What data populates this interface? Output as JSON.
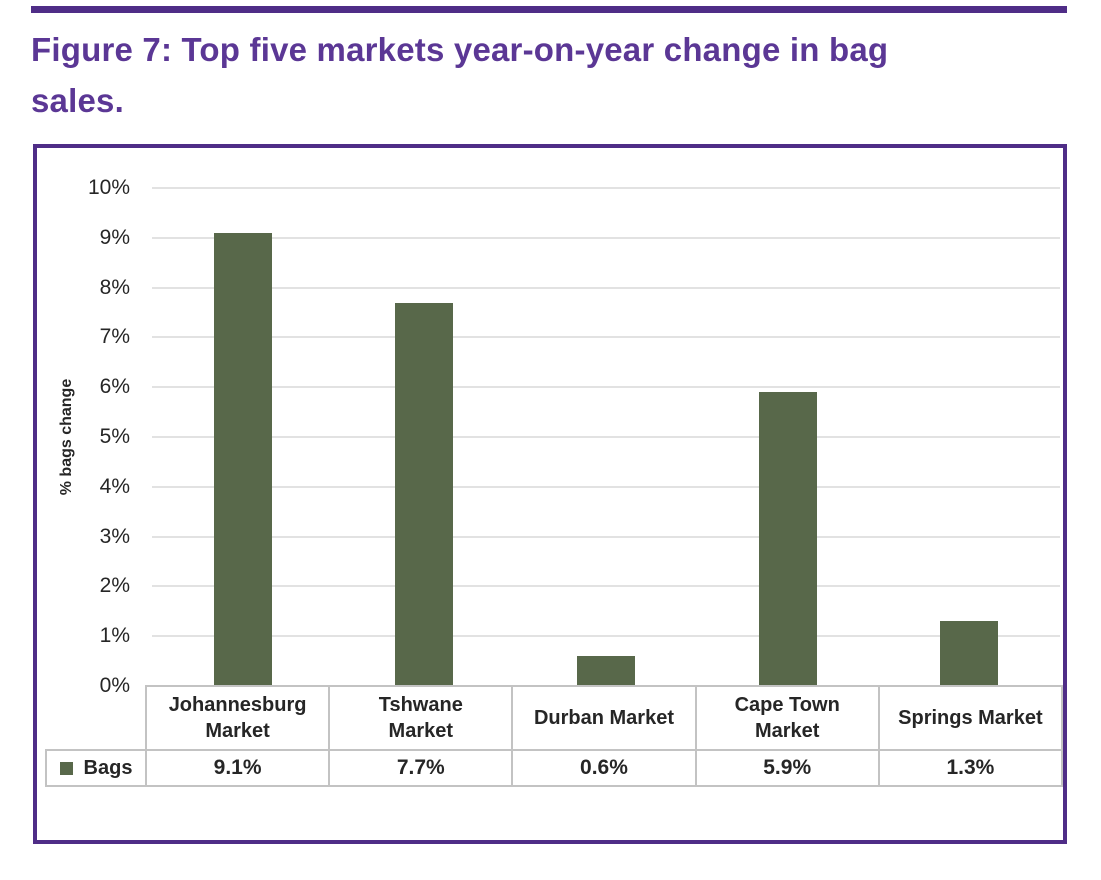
{
  "figure": {
    "title_full": "Figure 7: Top five markets year-on-year change in bag sales.",
    "title_lines": [
      "Figure 7: Top five markets year-on-year change in bag",
      "sales."
    ]
  },
  "colors": {
    "accent_purple": "#4f2d87",
    "title_purple": "#5b3795",
    "bar_green": "#58684a",
    "gridline_gray": "#e2e2e2",
    "table_border_gray": "#c3c3c3",
    "text_dark": "#262626"
  },
  "chart_data": {
    "type": "bar",
    "title": "Figure 7: Top five markets year-on-year change in bag sales.",
    "categories": [
      "Johannesburg Market",
      "Tshwane Market",
      "Durban Market",
      "Cape Town Market",
      "Springs Market"
    ],
    "category_label_lines": [
      "Johannesburg\nMarket",
      "Tshwane\nMarket",
      "Durban Market",
      "Cape Town\nMarket",
      "Springs Market"
    ],
    "series": [
      {
        "name": "Bags",
        "values": [
          9.1,
          7.7,
          0.6,
          5.9,
          1.3
        ]
      }
    ],
    "value_labels": [
      "9.1%",
      "7.7%",
      "0.6%",
      "5.9%",
      "1.3%"
    ],
    "xlabel": "",
    "ylabel": "% bags change",
    "ylim": [
      0,
      10
    ],
    "ytick_labels": [
      "0%",
      "1%",
      "2%",
      "3%",
      "4%",
      "5%",
      "6%",
      "7%",
      "8%",
      "9%",
      "10%"
    ],
    "grid": true,
    "legend": {
      "label": "Bags",
      "position": "bottom-table"
    }
  }
}
